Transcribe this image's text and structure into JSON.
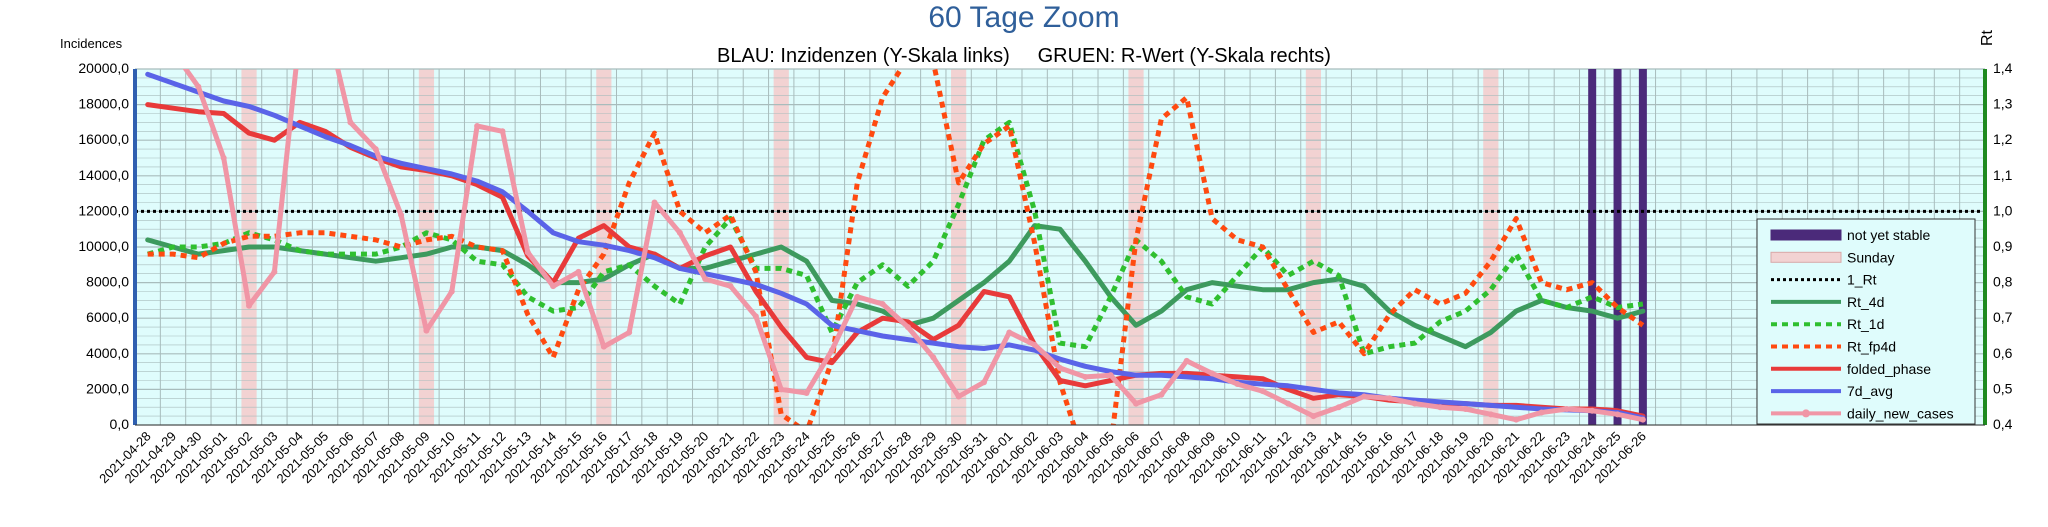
{
  "chart_data": {
    "type": "line",
    "title": "60 Tage Zoom",
    "subtitle": "BLAU: Inzidenzen (Y-Skala links)     GRUEN: R-Wert (Y-Skala rechts)",
    "ylabel_left": "Incidences",
    "ylabel_right": "Rt",
    "ylim_left": [
      0,
      20000
    ],
    "ylim_right": [
      0.4,
      1.4
    ],
    "grid": true,
    "legend_position": "right",
    "categories": [
      "2021-04-28",
      "2021-04-29",
      "2021-04-30",
      "2021-05-01",
      "2021-05-02",
      "2021-05-03",
      "2021-05-04",
      "2021-05-05",
      "2021-05-06",
      "2021-05-07",
      "2021-05-08",
      "2021-05-09",
      "2021-05-10",
      "2021-05-11",
      "2021-05-12",
      "2021-05-13",
      "2021-05-14",
      "2021-05-15",
      "2021-05-16",
      "2021-05-17",
      "2021-05-18",
      "2021-05-19",
      "2021-05-20",
      "2021-05-21",
      "2021-05-22",
      "2021-05-23",
      "2021-05-24",
      "2021-05-25",
      "2021-05-26",
      "2021-05-27",
      "2021-05-28",
      "2021-05-29",
      "2021-05-30",
      "2021-05-31",
      "2021-06-01",
      "2021-06-02",
      "2021-06-03",
      "2021-06-04",
      "2021-06-05",
      "2021-06-06",
      "2021-06-07",
      "2021-06-08",
      "2021-06-09",
      "2021-06-10",
      "2021-06-11",
      "2021-06-12",
      "2021-06-13",
      "2021-06-14",
      "2021-06-15",
      "2021-06-16",
      "2021-06-17",
      "2021-06-18",
      "2021-06-19",
      "2021-06-20",
      "2021-06-21",
      "2021-06-22",
      "2021-06-23",
      "2021-06-24",
      "2021-06-25",
      "2021-06-26"
    ],
    "left_ticks": [
      "0,0",
      "2000,0",
      "4000,0",
      "6000,0",
      "8000,0",
      "10000,0",
      "12000,0",
      "14000,0",
      "16000,0",
      "18000,0",
      "20000,0"
    ],
    "right_ticks": [
      "0,4",
      "0,5",
      "0,6",
      "0,7",
      "0,8",
      "0,9",
      "1,0",
      "1,1",
      "1,2",
      "1,3",
      "1,4"
    ],
    "sundays": [
      "2021-05-02",
      "2021-05-09",
      "2021-05-16",
      "2021-05-23",
      "2021-05-30",
      "2021-06-06",
      "2021-06-13",
      "2021-06-20"
    ],
    "not_yet_stable": [
      "2021-06-24",
      "2021-06-25",
      "2021-06-26"
    ],
    "one_rt": 1.0,
    "series": [
      {
        "name": "Rt_4d",
        "axis": "right",
        "color": "#3d9a5e",
        "style": "solid",
        "width": 5,
        "values": [
          0.92,
          0.9,
          0.88,
          0.89,
          0.9,
          0.9,
          0.89,
          0.88,
          0.87,
          0.86,
          0.87,
          0.88,
          0.9,
          0.9,
          0.89,
          0.85,
          0.8,
          0.8,
          0.81,
          0.85,
          0.88,
          0.84,
          0.84,
          0.86,
          0.88,
          0.9,
          0.86,
          0.75,
          0.74,
          0.72,
          0.68,
          0.7,
          0.75,
          0.8,
          0.86,
          0.96,
          0.95,
          0.86,
          0.76,
          0.68,
          0.72,
          0.78,
          0.8,
          0.79,
          0.78,
          0.78,
          0.8,
          0.81,
          0.79,
          0.72,
          0.68,
          0.65,
          0.62,
          0.66,
          0.72,
          0.75,
          0.73,
          0.72,
          0.7,
          0.72
        ]
      },
      {
        "name": "Rt_1d",
        "axis": "right",
        "color": "#2fbf2f",
        "style": "dashed",
        "width": 5,
        "values": [
          0.88,
          0.9,
          0.9,
          0.91,
          0.94,
          0.92,
          0.89,
          0.88,
          0.88,
          0.88,
          0.9,
          0.94,
          0.92,
          0.86,
          0.85,
          0.76,
          0.72,
          0.73,
          0.83,
          0.85,
          0.79,
          0.74,
          0.9,
          0.98,
          0.84,
          0.84,
          0.82,
          0.66,
          0.8,
          0.85,
          0.79,
          0.86,
          1.02,
          1.2,
          1.25,
          1.0,
          0.63,
          0.62,
          0.76,
          0.92,
          0.86,
          0.76,
          0.74,
          0.82,
          0.9,
          0.82,
          0.86,
          0.82,
          0.6,
          0.62,
          0.63,
          0.69,
          0.72,
          0.78,
          0.88,
          0.75,
          0.73,
          0.76,
          0.73,
          0.74
        ]
      },
      {
        "name": "Rt_fp4d",
        "axis": "right",
        "color": "#ff4a10",
        "style": "dashed",
        "width": 5,
        "values": [
          0.88,
          0.88,
          0.87,
          0.91,
          0.93,
          0.93,
          0.94,
          0.94,
          0.93,
          0.92,
          0.9,
          0.92,
          0.93,
          0.9,
          0.89,
          0.71,
          0.59,
          0.78,
          0.88,
          1.08,
          1.22,
          1.0,
          0.94,
          0.99,
          0.83,
          0.43,
          0.38,
          0.58,
          1.08,
          1.32,
          1.43,
          1.42,
          1.08,
          1.19,
          1.24,
          0.91,
          0.52,
          0.3,
          0.34,
          0.92,
          1.26,
          1.32,
          0.98,
          0.92,
          0.9,
          0.78,
          0.66,
          0.69,
          0.6,
          0.71,
          0.78,
          0.74,
          0.77,
          0.86,
          0.98,
          0.8,
          0.78,
          0.8,
          0.73,
          0.68
        ]
      },
      {
        "name": "folded_phase",
        "axis": "left",
        "color": "#e83a3a",
        "style": "solid",
        "width": 5,
        "values": [
          18000,
          17800,
          17600,
          17500,
          16400,
          16000,
          17000,
          16500,
          15600,
          15000,
          14500,
          14300,
          14000,
          13500,
          12800,
          9500,
          8000,
          10500,
          11200,
          10000,
          9600,
          8800,
          9500,
          10000,
          7500,
          5500,
          3800,
          3500,
          5200,
          6000,
          5800,
          4800,
          5600,
          7500,
          7200,
          4500,
          2500,
          2200,
          2500,
          2800,
          2900,
          2900,
          2800,
          2700,
          2600,
          2000,
          1500,
          1700,
          1600,
          1400,
          1300,
          1200,
          1200,
          1100,
          1100,
          1000,
          900,
          900,
          800,
          500
        ]
      },
      {
        "name": "7d_avg",
        "axis": "left",
        "color": "#5a63e8",
        "style": "solid",
        "width": 5,
        "values": [
          19700,
          19200,
          18700,
          18200,
          17900,
          17400,
          16800,
          16200,
          15700,
          15100,
          14700,
          14400,
          14100,
          13700,
          13100,
          12000,
          10800,
          10300,
          10100,
          9800,
          9400,
          8800,
          8500,
          8200,
          7900,
          7400,
          6800,
          5600,
          5300,
          5000,
          4800,
          4600,
          4400,
          4300,
          4500,
          4200,
          3700,
          3300,
          3000,
          2800,
          2800,
          2700,
          2600,
          2400,
          2300,
          2200,
          2000,
          1800,
          1700,
          1500,
          1400,
          1300,
          1200,
          1100,
          1000,
          900,
          850,
          800,
          700,
          400
        ]
      },
      {
        "name": "daily_new_cases",
        "axis": "left",
        "color": "#f096a6",
        "style": "solid",
        "width": 5,
        "markers": true,
        "values": [
          21500,
          21000,
          19000,
          15000,
          6700,
          8600,
          22000,
          23000,
          17000,
          15500,
          11800,
          5300,
          7500,
          16800,
          16500,
          9700,
          7800,
          8600,
          4400,
          5200,
          12500,
          10800,
          8200,
          7800,
          6100,
          2000,
          1800,
          4200,
          7200,
          6800,
          5500,
          3800,
          1600,
          2400,
          5200,
          4500,
          3200,
          2700,
          2800,
          1200,
          1700,
          3600,
          2900,
          2300,
          1900,
          1200,
          500,
          1000,
          1600,
          1500,
          1200,
          1000,
          900,
          600,
          300,
          700,
          900,
          800,
          600,
          300
        ]
      }
    ],
    "legend": [
      {
        "name": "not yet stable",
        "kind": "bar",
        "color": "#4b2a7a"
      },
      {
        "name": "Sunday",
        "kind": "bar",
        "color": "#f2d2d2"
      },
      {
        "name": "1_Rt",
        "kind": "dotted",
        "color": "#000000"
      },
      {
        "name": "Rt_4d",
        "kind": "solid",
        "color": "#3d9a5e"
      },
      {
        "name": "Rt_1d",
        "kind": "dashed",
        "color": "#2fbf2f"
      },
      {
        "name": "Rt_fp4d",
        "kind": "dashed",
        "color": "#ff4a10"
      },
      {
        "name": "folded_phase",
        "kind": "solid",
        "color": "#e83a3a"
      },
      {
        "name": "7d_avg",
        "kind": "solid",
        "color": "#5a63e8"
      },
      {
        "name": "daily_new_cases",
        "kind": "marker",
        "color": "#f096a6"
      }
    ]
  },
  "colors": {
    "plot_bg": "#dffcfc",
    "grid": "#a8bcbc",
    "title": "#2f5f9a",
    "left_axis": "#2f5fb0",
    "right_axis": "#1f8a1f"
  }
}
